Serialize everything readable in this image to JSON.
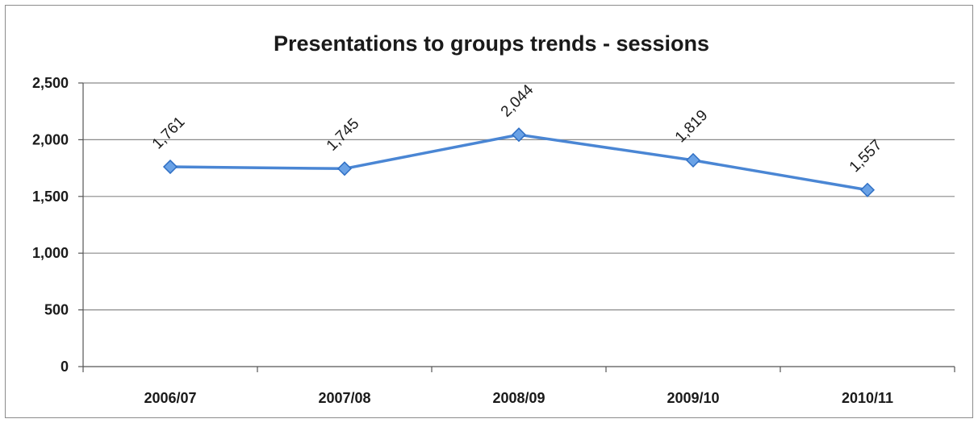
{
  "chart_data": {
    "type": "line",
    "title": "Presentations to groups trends - sessions",
    "categories": [
      "2006/07",
      "2007/08",
      "2008/09",
      "2009/10",
      "2010/11"
    ],
    "series": [
      {
        "values": [
          1761,
          1745,
          2044,
          1819,
          1557
        ],
        "data_labels": [
          "1,761",
          "1,745",
          "2,044",
          "1,819",
          "1,557"
        ]
      }
    ],
    "yticks": [
      0,
      500,
      1000,
      1500,
      2000,
      2500
    ],
    "ytick_labels": [
      "0",
      "500",
      "1,000",
      "1,500",
      "2,000",
      "2,500"
    ],
    "ylim": [
      0,
      2500
    ],
    "grid": true,
    "legend": "none",
    "colors": {
      "line": "#4a86d4",
      "marker": "#6aa2e6",
      "marker_edge": "#2f6fc4",
      "grid": "#8a8a8a",
      "axis": "#555555"
    }
  }
}
